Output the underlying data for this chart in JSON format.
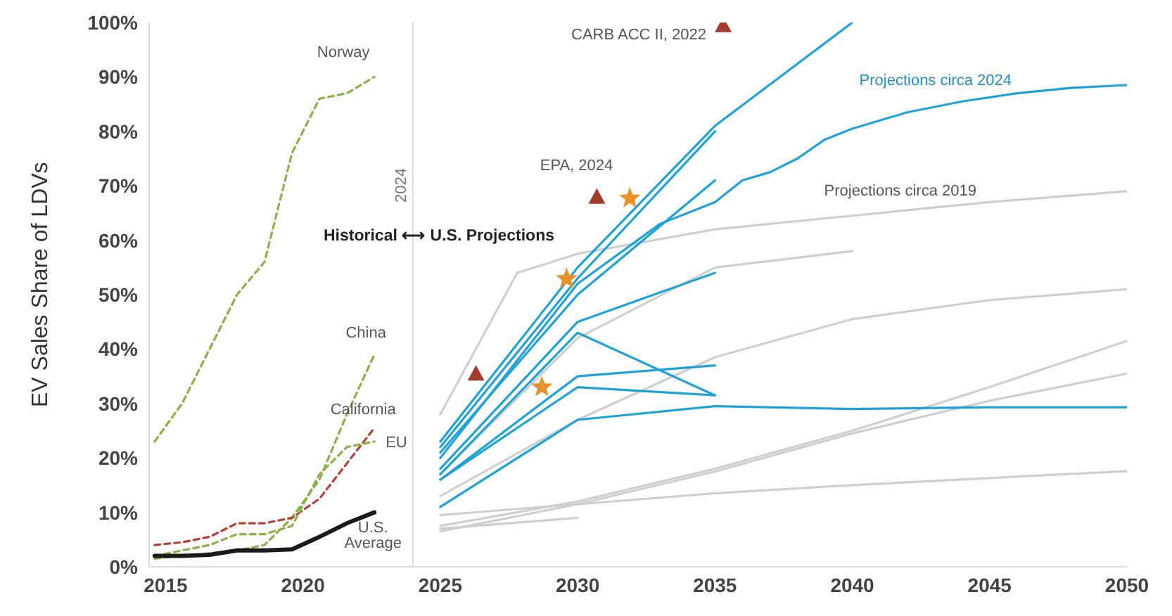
{
  "chart_data": {
    "type": "line",
    "ylabel": "EV Sales Share of LDVs",
    "xlim": [
      2014.4,
      2050
    ],
    "xticks": [
      2015,
      2020,
      2025,
      2030,
      2035,
      2040,
      2045,
      2050
    ],
    "ylim": [
      0,
      100
    ],
    "yticks": [
      {
        "value": 0,
        "label": "0%"
      },
      {
        "value": 10,
        "label": "10%"
      },
      {
        "value": 20,
        "label": "20%"
      },
      {
        "value": 30,
        "label": "30%"
      },
      {
        "value": 40,
        "label": "40%"
      },
      {
        "value": 50,
        "label": "50%"
      },
      {
        "value": 60,
        "label": "60%"
      },
      {
        "value": 70,
        "label": "70%"
      },
      {
        "value": 80,
        "label": "80%"
      },
      {
        "value": 90,
        "label": "90%"
      },
      {
        "value": 100,
        "label": "100%"
      }
    ],
    "grid": false,
    "marker": "none",
    "ref_lines": [
      {
        "axis": "x",
        "value": 2024,
        "label": "2024",
        "color": "#dddddd"
      }
    ],
    "annotations": [
      "Historical ⟷ U.S. Projections",
      {
        "text": "CARB ACC II, 2022",
        "x": 2035.3,
        "y": 99.5
      },
      {
        "text": "EPA, 2024",
        "x": 2031.9,
        "y": 67.7
      }
    ],
    "series": [
      {
        "name": "Norway",
        "color": "#8db04a",
        "line_style": "dashed",
        "x": [
          2014.6,
          2015.6,
          2016.6,
          2017.6,
          2018.6,
          2019.6,
          2020.6,
          2021.6,
          2022.6
        ],
        "values": [
          23,
          30,
          40,
          50,
          56,
          76,
          86,
          87,
          90
        ]
      },
      {
        "name": "China",
        "color": "#8db04a",
        "line_style": "dashed",
        "x": [
          2014.6,
          2015.6,
          2016.6,
          2017.6,
          2018.6,
          2019.6,
          2020.6,
          2021.6,
          2022.6
        ],
        "values": [
          1.5,
          2,
          2.5,
          3,
          4,
          9,
          16,
          28,
          39
        ]
      },
      {
        "name": "California",
        "color": "#b5413a",
        "line_style": "dashed",
        "x": [
          2014.6,
          2015.6,
          2016.6,
          2017.6,
          2018.6,
          2019.6,
          2020.6,
          2021.6,
          2022.6
        ],
        "values": [
          4,
          4.5,
          5.5,
          8,
          8,
          9,
          12.5,
          19,
          25.5
        ]
      },
      {
        "name": "EU",
        "color": "#8db04a",
        "line_style": "dashed",
        "x": [
          2014.6,
          2015.6,
          2016.6,
          2017.6,
          2018.6,
          2019.6,
          2020.6,
          2021.6,
          2022.6
        ],
        "values": [
          2,
          3,
          4,
          6,
          6,
          7.5,
          17,
          22,
          23
        ]
      },
      {
        "name": "U.S. Average",
        "color": "#1a1a1a",
        "line_style": "solid",
        "x": [
          2014.6,
          2015.6,
          2016.6,
          2017.6,
          2018.6,
          2019.6,
          2020.6,
          2021.6,
          2022.6
        ],
        "values": [
          2,
          2,
          2.2,
          3,
          3,
          3.2,
          5.5,
          8,
          10
        ]
      },
      {
        "name": "Projections circa 2019",
        "color": "#cfcfcf",
        "line_style": "solid",
        "x": [
          2025,
          2027.8,
          2030,
          2035,
          2040,
          2045,
          2050
        ],
        "values": [
          28,
          54,
          57.5,
          62,
          64.5,
          67,
          69
        ]
      },
      {
        "color": "#cfcfcf",
        "line_style": "solid",
        "x": [
          2025,
          2030,
          2035,
          2040
        ],
        "values": [
          17,
          42,
          55,
          58
        ]
      },
      {
        "color": "#cfcfcf",
        "line_style": "solid",
        "x": [
          2025,
          2030,
          2035,
          2040,
          2045,
          2050
        ],
        "values": [
          13,
          27,
          38.5,
          45.5,
          49,
          51
        ]
      },
      {
        "color": "#cfcfcf",
        "line_style": "solid",
        "x": [
          2025,
          2030,
          2035,
          2040,
          2045,
          2050
        ],
        "values": [
          7.5,
          12,
          18,
          25,
          33,
          41.5
        ]
      },
      {
        "color": "#cfcfcf",
        "line_style": "solid",
        "x": [
          2025,
          2030,
          2035,
          2040,
          2045,
          2050
        ],
        "values": [
          6.5,
          11.5,
          17.5,
          24.5,
          30.5,
          35.5
        ]
      },
      {
        "color": "#cfcfcf",
        "line_style": "solid",
        "x": [
          2025,
          2030,
          2035,
          2040,
          2045,
          2050
        ],
        "values": [
          9.5,
          11.5,
          13.5,
          15,
          16.3,
          17.6
        ]
      },
      {
        "color": "#cfcfcf",
        "line_style": "solid",
        "x": [
          2025,
          2030
        ],
        "values": [
          7,
          9
        ]
      },
      {
        "name": "Projections circa 2024",
        "color": "#1fa3d6",
        "line_style": "solid",
        "x": [
          2025,
          2030,
          2033,
          2035,
          2036,
          2037,
          2038,
          2039,
          2040,
          2042,
          2044,
          2046,
          2048,
          2050
        ],
        "values": [
          20,
          52,
          63,
          67,
          71,
          72.5,
          75,
          78.5,
          80.5,
          83.5,
          85.5,
          87,
          88,
          88.5
        ]
      },
      {
        "color": "#1fa3d6",
        "line_style": "solid",
        "x": [
          2025,
          2030,
          2035,
          2040
        ],
        "values": [
          23,
          55,
          81,
          100
        ]
      },
      {
        "color": "#1fa3d6",
        "line_style": "solid",
        "x": [
          2025,
          2030,
          2035
        ],
        "values": [
          22,
          53,
          80
        ]
      },
      {
        "color": "#1fa3d6",
        "line_style": "solid",
        "x": [
          2025,
          2030,
          2035
        ],
        "values": [
          21,
          50,
          71
        ]
      },
      {
        "color": "#1fa3d6",
        "line_style": "solid",
        "x": [
          2025,
          2030,
          2035
        ],
        "values": [
          18,
          45,
          54
        ]
      },
      {
        "color": "#1fa3d6",
        "line_style": "solid",
        "x": [
          2025,
          2030,
          2035
        ],
        "values": [
          17,
          43,
          31.5
        ]
      },
      {
        "color": "#1fa3d6",
        "line_style": "solid",
        "x": [
          2025,
          2030,
          2035
        ],
        "values": [
          16,
          35,
          37
        ]
      },
      {
        "color": "#1fa3d6",
        "line_style": "solid",
        "x": [
          2025,
          2030,
          2035
        ],
        "values": [
          16,
          33,
          31.5
        ]
      },
      {
        "color": "#1fa3d6",
        "line_style": "solid",
        "x": [
          2025,
          2030,
          2035,
          2040,
          2045,
          2050
        ],
        "values": [
          11,
          27,
          29.5,
          29,
          29.3,
          29.3
        ]
      },
      {
        "type": "scatter",
        "marker": "triangle",
        "color": "#a33b2f",
        "x": [
          2035.3,
          2026.3,
          2030.7
        ],
        "values": [
          99.5,
          35.5,
          68
        ]
      },
      {
        "type": "scatter",
        "marker": "star",
        "color": "#e8912b",
        "x": [
          2031.9,
          2029.6,
          2028.7
        ],
        "values": [
          67.7,
          52.9,
          33
        ]
      }
    ]
  }
}
